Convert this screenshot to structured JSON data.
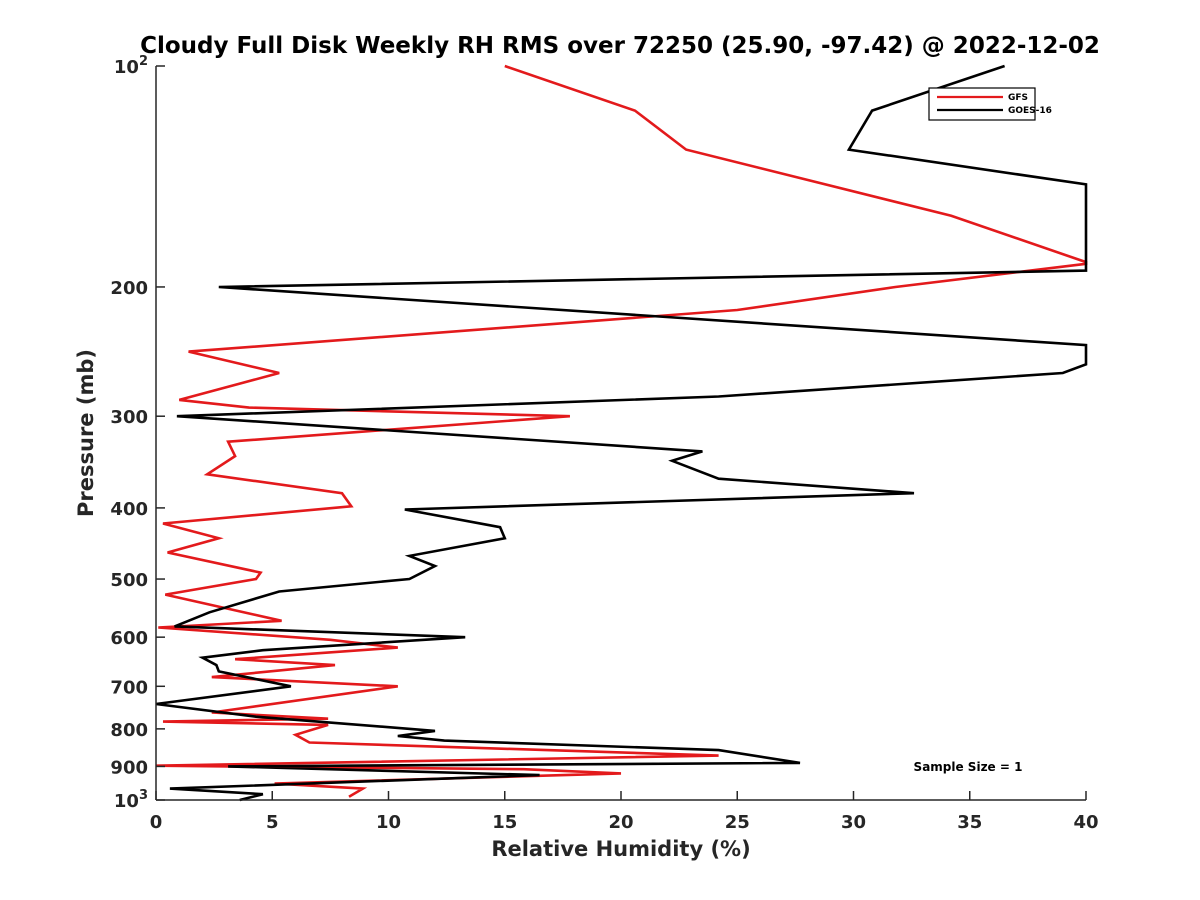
{
  "chart_data": {
    "type": "line",
    "title": "Cloudy Full Disk Weekly RH RMS over 72250 (25.90, -97.42) @ 2022-12-02",
    "xlabel": "Relative Humidity (%)",
    "ylabel": "Pressure (mb)",
    "xlim": [
      0,
      40
    ],
    "ylim": [
      100,
      1000
    ],
    "y_scale": "log",
    "y_reversed": true,
    "x_ticks": [
      0,
      5,
      10,
      15,
      20,
      25,
      30,
      35,
      40
    ],
    "x_tick_labels": [
      "0",
      "5",
      "10",
      "15",
      "20",
      "25",
      "30",
      "35",
      "40"
    ],
    "y_ticks": [
      {
        "value": 100,
        "label": "10",
        "sup": "2"
      },
      {
        "value": 200,
        "label": "200",
        "sup": ""
      },
      {
        "value": 300,
        "label": "300",
        "sup": ""
      },
      {
        "value": 400,
        "label": "400",
        "sup": ""
      },
      {
        "value": 500,
        "label": "500",
        "sup": ""
      },
      {
        "value": 600,
        "label": "600",
        "sup": ""
      },
      {
        "value": 700,
        "label": "700",
        "sup": ""
      },
      {
        "value": 800,
        "label": "800",
        "sup": ""
      },
      {
        "value": 900,
        "label": "900",
        "sup": ""
      },
      {
        "value": 1000,
        "label": "10",
        "sup": "3"
      }
    ],
    "grid": false,
    "legend_position": "top-right",
    "annotation": "Sample Size = 1",
    "series": [
      {
        "name": "GFS",
        "color": "#e31a1c",
        "points": [
          [
            15.0,
            100
          ],
          [
            20.6,
            115
          ],
          [
            22.8,
            130
          ],
          [
            34.2,
            160
          ],
          [
            40.0,
            185
          ],
          [
            40.0,
            186
          ],
          [
            31.8,
            200
          ],
          [
            25.0,
            215
          ],
          [
            1.4,
            245
          ],
          [
            5.3,
            262
          ],
          [
            1.0,
            285
          ],
          [
            4.0,
            292
          ],
          [
            17.8,
            300
          ],
          [
            3.1,
            325
          ],
          [
            3.4,
            340
          ],
          [
            2.2,
            360
          ],
          [
            8.0,
            382
          ],
          [
            8.4,
            398
          ],
          [
            0.3,
            420
          ],
          [
            2.7,
            440
          ],
          [
            0.5,
            460
          ],
          [
            4.5,
            490
          ],
          [
            4.3,
            500
          ],
          [
            0.4,
            525
          ],
          [
            5.4,
            570
          ],
          [
            0.1,
            582
          ],
          [
            7.5,
            605
          ],
          [
            10.4,
            620
          ],
          [
            3.4,
            643
          ],
          [
            7.7,
            655
          ],
          [
            2.4,
            680
          ],
          [
            10.4,
            700
          ],
          [
            2.4,
            760
          ],
          [
            7.4,
            775
          ],
          [
            0.3,
            782
          ],
          [
            7.4,
            790
          ],
          [
            6.0,
            815
          ],
          [
            6.6,
            835
          ],
          [
            24.2,
            870
          ],
          [
            0.0,
            898
          ],
          [
            15.8,
            908
          ],
          [
            20.0,
            920
          ],
          [
            5.1,
            950
          ],
          [
            8.9,
            965
          ],
          [
            8.3,
            990
          ]
        ]
      },
      {
        "name": "GOES-16",
        "color": "#000000",
        "points": [
          [
            36.5,
            100
          ],
          [
            30.8,
            115
          ],
          [
            29.8,
            130
          ],
          [
            40.0,
            145
          ],
          [
            40.0,
            190
          ],
          [
            2.7,
            200
          ],
          [
            40.0,
            240
          ],
          [
            40.0,
            255
          ],
          [
            39.0,
            262
          ],
          [
            24.2,
            282
          ],
          [
            0.9,
            300
          ],
          [
            23.5,
            335
          ],
          [
            22.2,
            345
          ],
          [
            24.2,
            365
          ],
          [
            32.6,
            382
          ],
          [
            10.7,
            402
          ],
          [
            14.8,
            425
          ],
          [
            15.0,
            440
          ],
          [
            10.9,
            465
          ],
          [
            12.0,
            480
          ],
          [
            10.9,
            500
          ],
          [
            5.3,
            520
          ],
          [
            2.3,
            555
          ],
          [
            0.8,
            580
          ],
          [
            13.3,
            600
          ],
          [
            4.6,
            625
          ],
          [
            2.0,
            640
          ],
          [
            2.6,
            655
          ],
          [
            2.7,
            668
          ],
          [
            5.8,
            700
          ],
          [
            0.0,
            740
          ],
          [
            4.3,
            770
          ],
          [
            12.0,
            805
          ],
          [
            10.4,
            818
          ],
          [
            12.4,
            830
          ],
          [
            24.2,
            855
          ],
          [
            27.7,
            890
          ],
          [
            3.1,
            900
          ],
          [
            16.5,
            925
          ],
          [
            0.6,
            965
          ],
          [
            4.6,
            982
          ],
          [
            3.6,
            1000
          ]
        ]
      }
    ]
  }
}
